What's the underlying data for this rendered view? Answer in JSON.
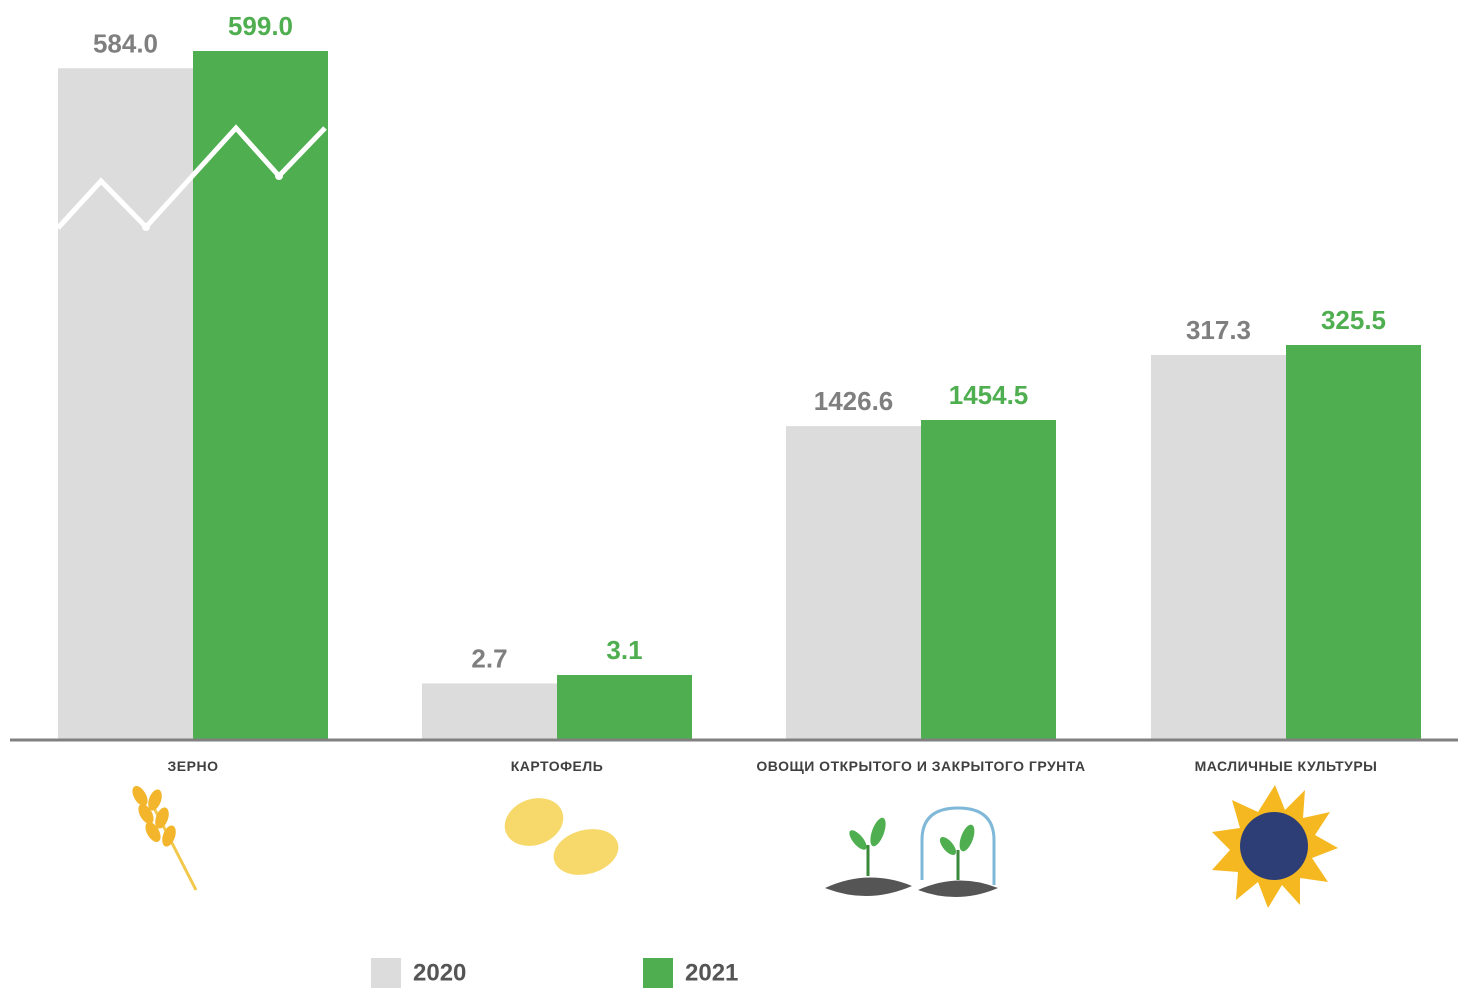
{
  "chart_data": {
    "type": "bar",
    "categories": [
      "ЗЕРНО",
      "КАРТОФЕЛЬ",
      "ОВОЩИ ОТКРЫТОГО И ЗАКРЫТОГО ГРУНТА",
      "МАСЛИЧНЫЕ КУЛЬТУРЫ"
    ],
    "series": [
      {
        "name": "2020",
        "color": "#dcdcdc",
        "label_color": "#7f7f7f",
        "values": [
          584.0,
          2.7,
          1426.6,
          317.3
        ],
        "value_labels": [
          "584.0",
          "2.7",
          "1426.6",
          "317.3"
        ]
      },
      {
        "name": "2021",
        "color": "#4fae4f",
        "label_color": "#4fae4f",
        "values": [
          599.0,
          3.1,
          1454.5,
          325.5
        ],
        "value_labels": [
          "599.0",
          "3.1",
          "1454.5",
          "325.5"
        ]
      }
    ]
  }
}
